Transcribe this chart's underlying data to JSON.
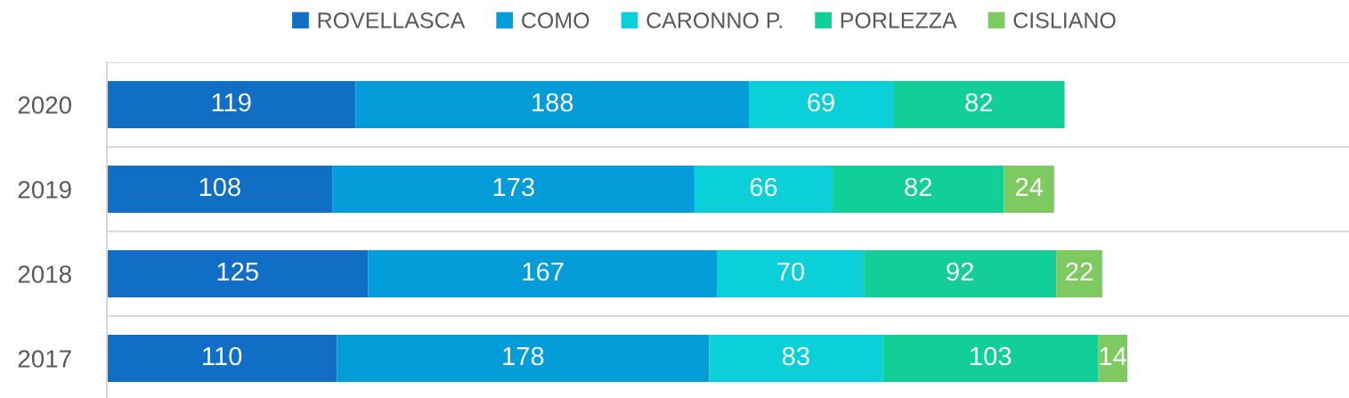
{
  "chart_data": {
    "type": "bar",
    "orientation": "horizontal",
    "stacked": true,
    "data_labels": true,
    "grid": "y",
    "legend": "top",
    "tick_labels": "y",
    "categories": [
      "2020",
      "2019",
      "2018",
      "2017"
    ],
    "xlim": [
      0,
      594
    ],
    "series": [
      {
        "name": "ROVELLASCA",
        "color": "#106ec5",
        "values": [
          119,
          108,
          125,
          110
        ]
      },
      {
        "name": "COMO",
        "color": "#029dd8",
        "values": [
          188,
          173,
          167,
          178
        ]
      },
      {
        "name": "CARONNO P.",
        "color": "#0cd0d9",
        "values": [
          69,
          66,
          70,
          83
        ]
      },
      {
        "name": "PORLEZZA",
        "color": "#12cf9a",
        "values": [
          82,
          82,
          92,
          103
        ]
      },
      {
        "name": "CISLIANO",
        "color": "#7dca60",
        "values": [
          null,
          24,
          22,
          14
        ]
      }
    ]
  }
}
